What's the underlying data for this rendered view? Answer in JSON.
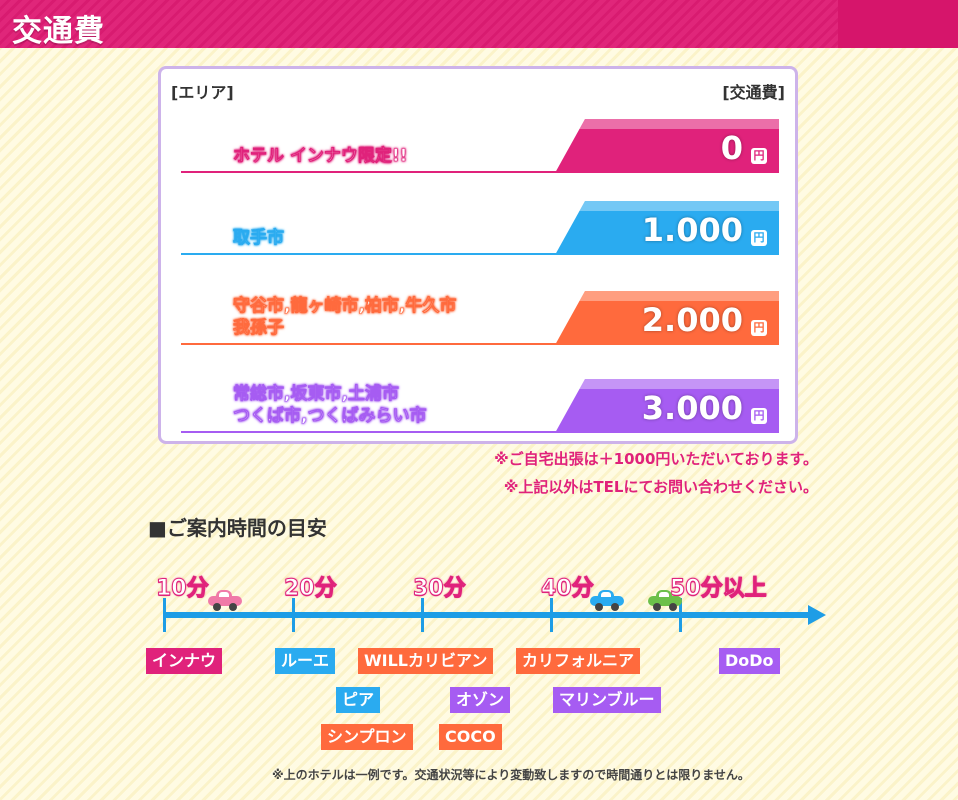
{
  "header": {
    "title": "交通費"
  },
  "fare_table": {
    "col_area": "[エリア]",
    "col_fare": "[交通費]",
    "rows": [
      {
        "area_line1": "ホテル インナウ限定!!",
        "area_line2": "",
        "amount": "0",
        "yen": "円",
        "color": "#e0227b"
      },
      {
        "area_line1": "取手市",
        "area_line2": "",
        "amount": "1.000",
        "yen": "円",
        "color": "#2aabf0"
      },
      {
        "area_line1": "守谷市,龍ヶ崎市,柏市,牛久市",
        "area_line2": "我孫子",
        "amount": "2.000",
        "yen": "円",
        "color": "#ff6a3d"
      },
      {
        "area_line1": "常総市,坂東市,土浦市",
        "area_line2": "つくば市,つくばみらい市",
        "amount": "3.000",
        "yen": "円",
        "color": "#a65cf2"
      }
    ]
  },
  "notes": [
    "※ご自宅出張は＋1000円いただいております。",
    "※上記以外はTELにてお問い合わせください。"
  ],
  "guide": {
    "title": "■ご案内時間の目安",
    "labels": [
      "10分",
      "20分",
      "30分",
      "40分",
      "50分以上"
    ],
    "cars": [
      {
        "icon": "car-icon",
        "color": "#f07aa8"
      },
      {
        "icon": "car-icon",
        "color": "#2aabf0"
      },
      {
        "icon": "car-icon",
        "color": "#6cc04a"
      }
    ],
    "hotels": [
      {
        "name": "インナウ",
        "color": "#e0227b"
      },
      {
        "name": "ルーエ",
        "color": "#2aabf0"
      },
      {
        "name": "ピア",
        "color": "#2aabf0"
      },
      {
        "name": "シンプロン",
        "color": "#ff6a3d"
      },
      {
        "name": "WILLカリビアン",
        "color": "#ff6a3d"
      },
      {
        "name": "オゾン",
        "color": "#a65cf2"
      },
      {
        "name": "COCO",
        "color": "#ff6a3d"
      },
      {
        "name": "カリフォルニア",
        "color": "#ff6a3d"
      },
      {
        "name": "マリンブルー",
        "color": "#a65cf2"
      },
      {
        "name": "DoDo",
        "color": "#a65cf2"
      }
    ],
    "footnote": "※上のホテルは一例です。交通状況等により変動致しますので時間通りとは限りません。"
  }
}
